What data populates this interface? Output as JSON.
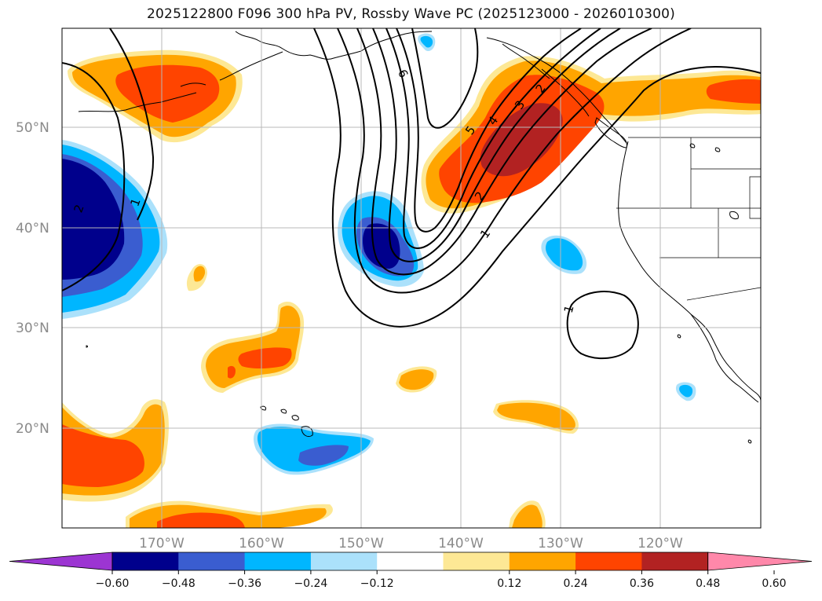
{
  "title": "2025122800 F096 300 hPa PV, Rossby Wave PC (2025123000 - 2026010300)",
  "map": {
    "lat_labels": [
      "50°N",
      "40°N",
      "30°N",
      "20°N"
    ],
    "lon_labels": [
      "170°W",
      "160°W",
      "150°W",
      "140°W",
      "130°W",
      "120°W"
    ]
  },
  "contour_labels": [
    "6",
    "5",
    "4",
    "3",
    "2",
    "2",
    "1",
    "1",
    "2",
    "1"
  ],
  "colorbar": {
    "colors": [
      "#9c35d2",
      "#00008c",
      "#3a5dd0",
      "#00b6ff",
      "#abe1fb",
      "#ffffff",
      "#fde895",
      "#ffa500",
      "#ff4400",
      "#b22222",
      "#ff88aa"
    ],
    "ticks": [
      "−0.60",
      "−0.48",
      "−0.36",
      "−0.24",
      "−0.12",
      "0.12",
      "0.24",
      "0.36",
      "0.48",
      "0.60"
    ]
  }
}
